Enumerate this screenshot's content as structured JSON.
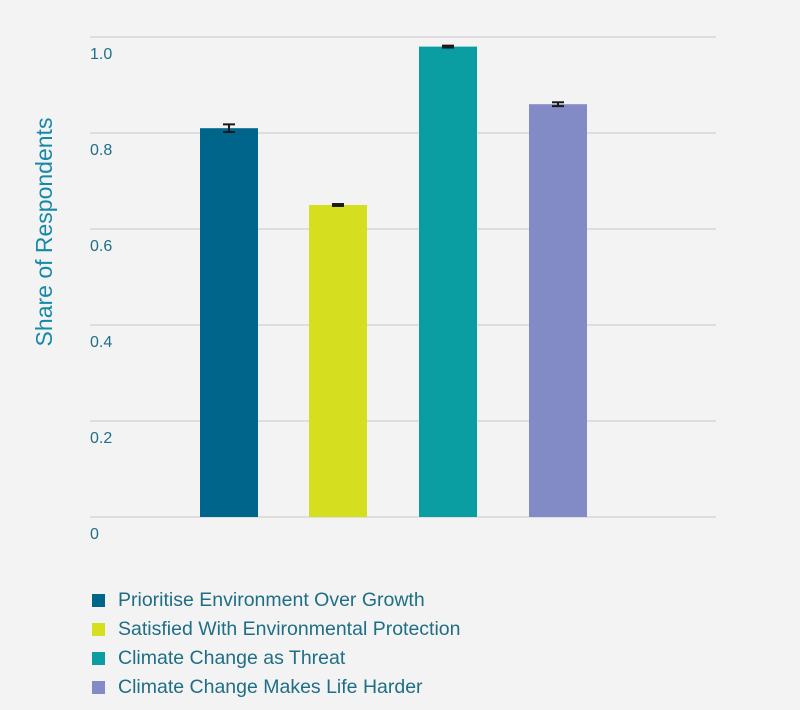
{
  "chart_data": {
    "type": "bar",
    "title": "",
    "xlabel": "",
    "ylabel": "Share of Respondents",
    "ylim": [
      0,
      1.0
    ],
    "yticks": [
      0,
      0.2,
      0.4,
      0.6,
      0.8,
      1.0
    ],
    "ytick_labels": [
      "0",
      "0.2",
      "0.4",
      "0.6",
      "0.8",
      "1.0"
    ],
    "grid": true,
    "legend_position": "bottom-left",
    "categories": [
      "Prioritise Environment Over Growth",
      "Satisfied With Environmental Protection",
      "Climate Change as Threat",
      "Climate Change Makes Life Harder"
    ],
    "values": [
      0.81,
      0.65,
      0.98,
      0.86
    ],
    "errors": [
      0.008,
      0.002,
      0.002,
      0.004
    ],
    "colors": [
      "#00658a",
      "#d6df1f",
      "#0a9ea3",
      "#838bc6"
    ]
  }
}
